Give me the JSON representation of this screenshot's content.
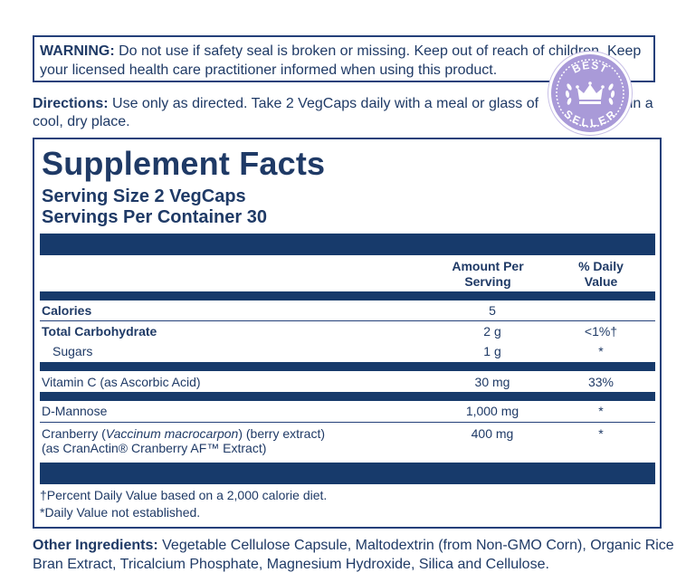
{
  "warning": {
    "label": "WARNING:",
    "text": " Do not use if safety seal is broken or missing. Keep out of reach of children. Keep your licensed health care practitioner informed when using this product."
  },
  "directions": {
    "label": "Directions:",
    "text": " Use only as directed. Take 2 VegCaps daily with a meal or glass of ",
    "text_end": "e in a cool, dry place."
  },
  "badge": {
    "top": "BEST",
    "bottom": "SELLER",
    "color": "#a99ad8",
    "icon": "crown-icon"
  },
  "facts": {
    "title": "Supplement Facts",
    "serving_size": "Serving Size 2 VegCaps",
    "servings_per_container": "Servings Per Container 30",
    "col_amount_1": "Amount Per",
    "col_amount_2": "Serving",
    "col_dv_1": "% Daily",
    "col_dv_2": "Value",
    "rows": [
      {
        "name": "Calories",
        "amount": "5",
        "dv": ""
      },
      {
        "name": "Total Carbohydrate",
        "amount": "2 g",
        "dv": "<1%†"
      },
      {
        "name": "Sugars",
        "amount": "1 g",
        "dv": "*"
      },
      {
        "name": "Vitamin C (as Ascorbic Acid)",
        "amount": "30 mg",
        "dv": "33%"
      },
      {
        "name": "D-Mannose",
        "amount": "1,000 mg",
        "dv": "*"
      },
      {
        "name_pre": "Cranberry (",
        "name_italic": "Vaccinum macrocarpon",
        "name_post": ") (berry extract)",
        "name_line2": "(as CranActin® Cranberry AF™ Extract)",
        "amount": "400 mg",
        "dv": "*"
      }
    ],
    "footnote_1": "†Percent Daily Value based on a 2,000 calorie diet.",
    "footnote_2": "*Daily Value not established."
  },
  "other": {
    "label": "Other Ingredients:",
    "text": " Vegetable Cellulose Capsule, Maltodextrin (from Non-GMO Corn), Organic Rice Bran Extract, Tricalcium Phosphate, Magnesium Hydroxide, Silica and Cellulose."
  },
  "colors": {
    "navy": "#173a6b",
    "text": "#1f3a66"
  }
}
